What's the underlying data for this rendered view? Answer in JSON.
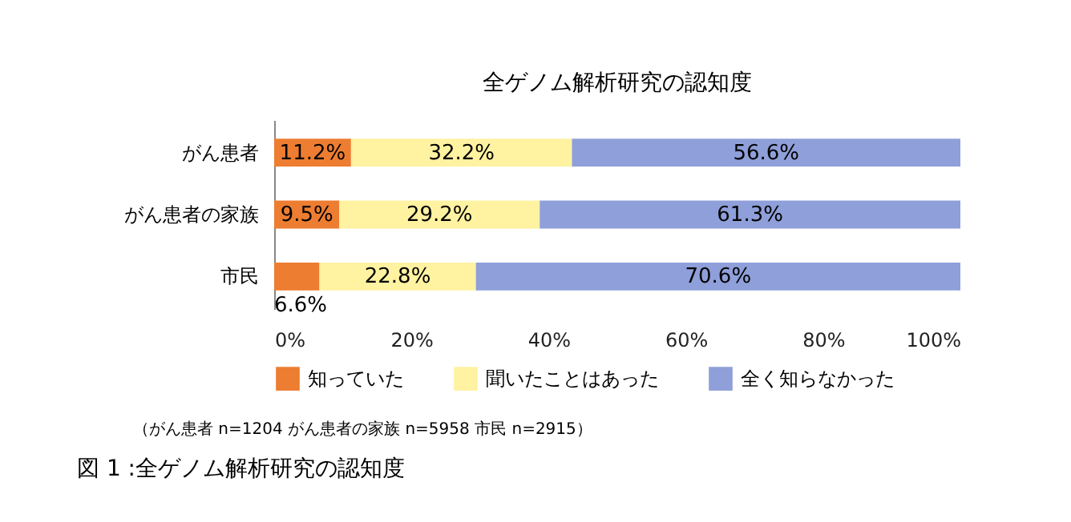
{
  "chart_data": {
    "type": "bar",
    "orientation": "horizontal",
    "stacked": true,
    "title": "全ゲノム解析研究の認知度",
    "categories": [
      "がん患者",
      "がん患者の家族",
      "市民"
    ],
    "series": [
      {
        "name": "知っていた",
        "color": "#ed7d31",
        "values": [
          11.2,
          9.5,
          6.6
        ],
        "value_labels": [
          "11.2%",
          "9.5%",
          "6.6%"
        ]
      },
      {
        "name": "聞いたことはあった",
        "color": "#fff2a1",
        "values": [
          32.2,
          29.2,
          22.8
        ],
        "value_labels": [
          "32.2%",
          "29.2%",
          "22.8%"
        ]
      },
      {
        "name": "全く知らなかった",
        "color": "#8e9fd9",
        "values": [
          56.6,
          61.3,
          70.6
        ],
        "value_labels": [
          "56.6%",
          "61.3%",
          "70.6%"
        ]
      }
    ],
    "xlim": [
      0,
      100
    ],
    "xticks": [
      {
        "value": 0,
        "label": "0%"
      },
      {
        "value": 20,
        "label": "20%"
      },
      {
        "value": 40,
        "label": "40%"
      },
      {
        "value": 60,
        "label": "60%"
      },
      {
        "value": 80,
        "label": "80%"
      },
      {
        "value": 100,
        "label": "100%"
      }
    ],
    "grid": false,
    "legend": "bottom",
    "annotations": [
      "（がん患者 n=1204 がん患者の家族 n=5958 市民 n=2915）",
      "図 1 :全ゲノム解析研究の認知度"
    ]
  }
}
